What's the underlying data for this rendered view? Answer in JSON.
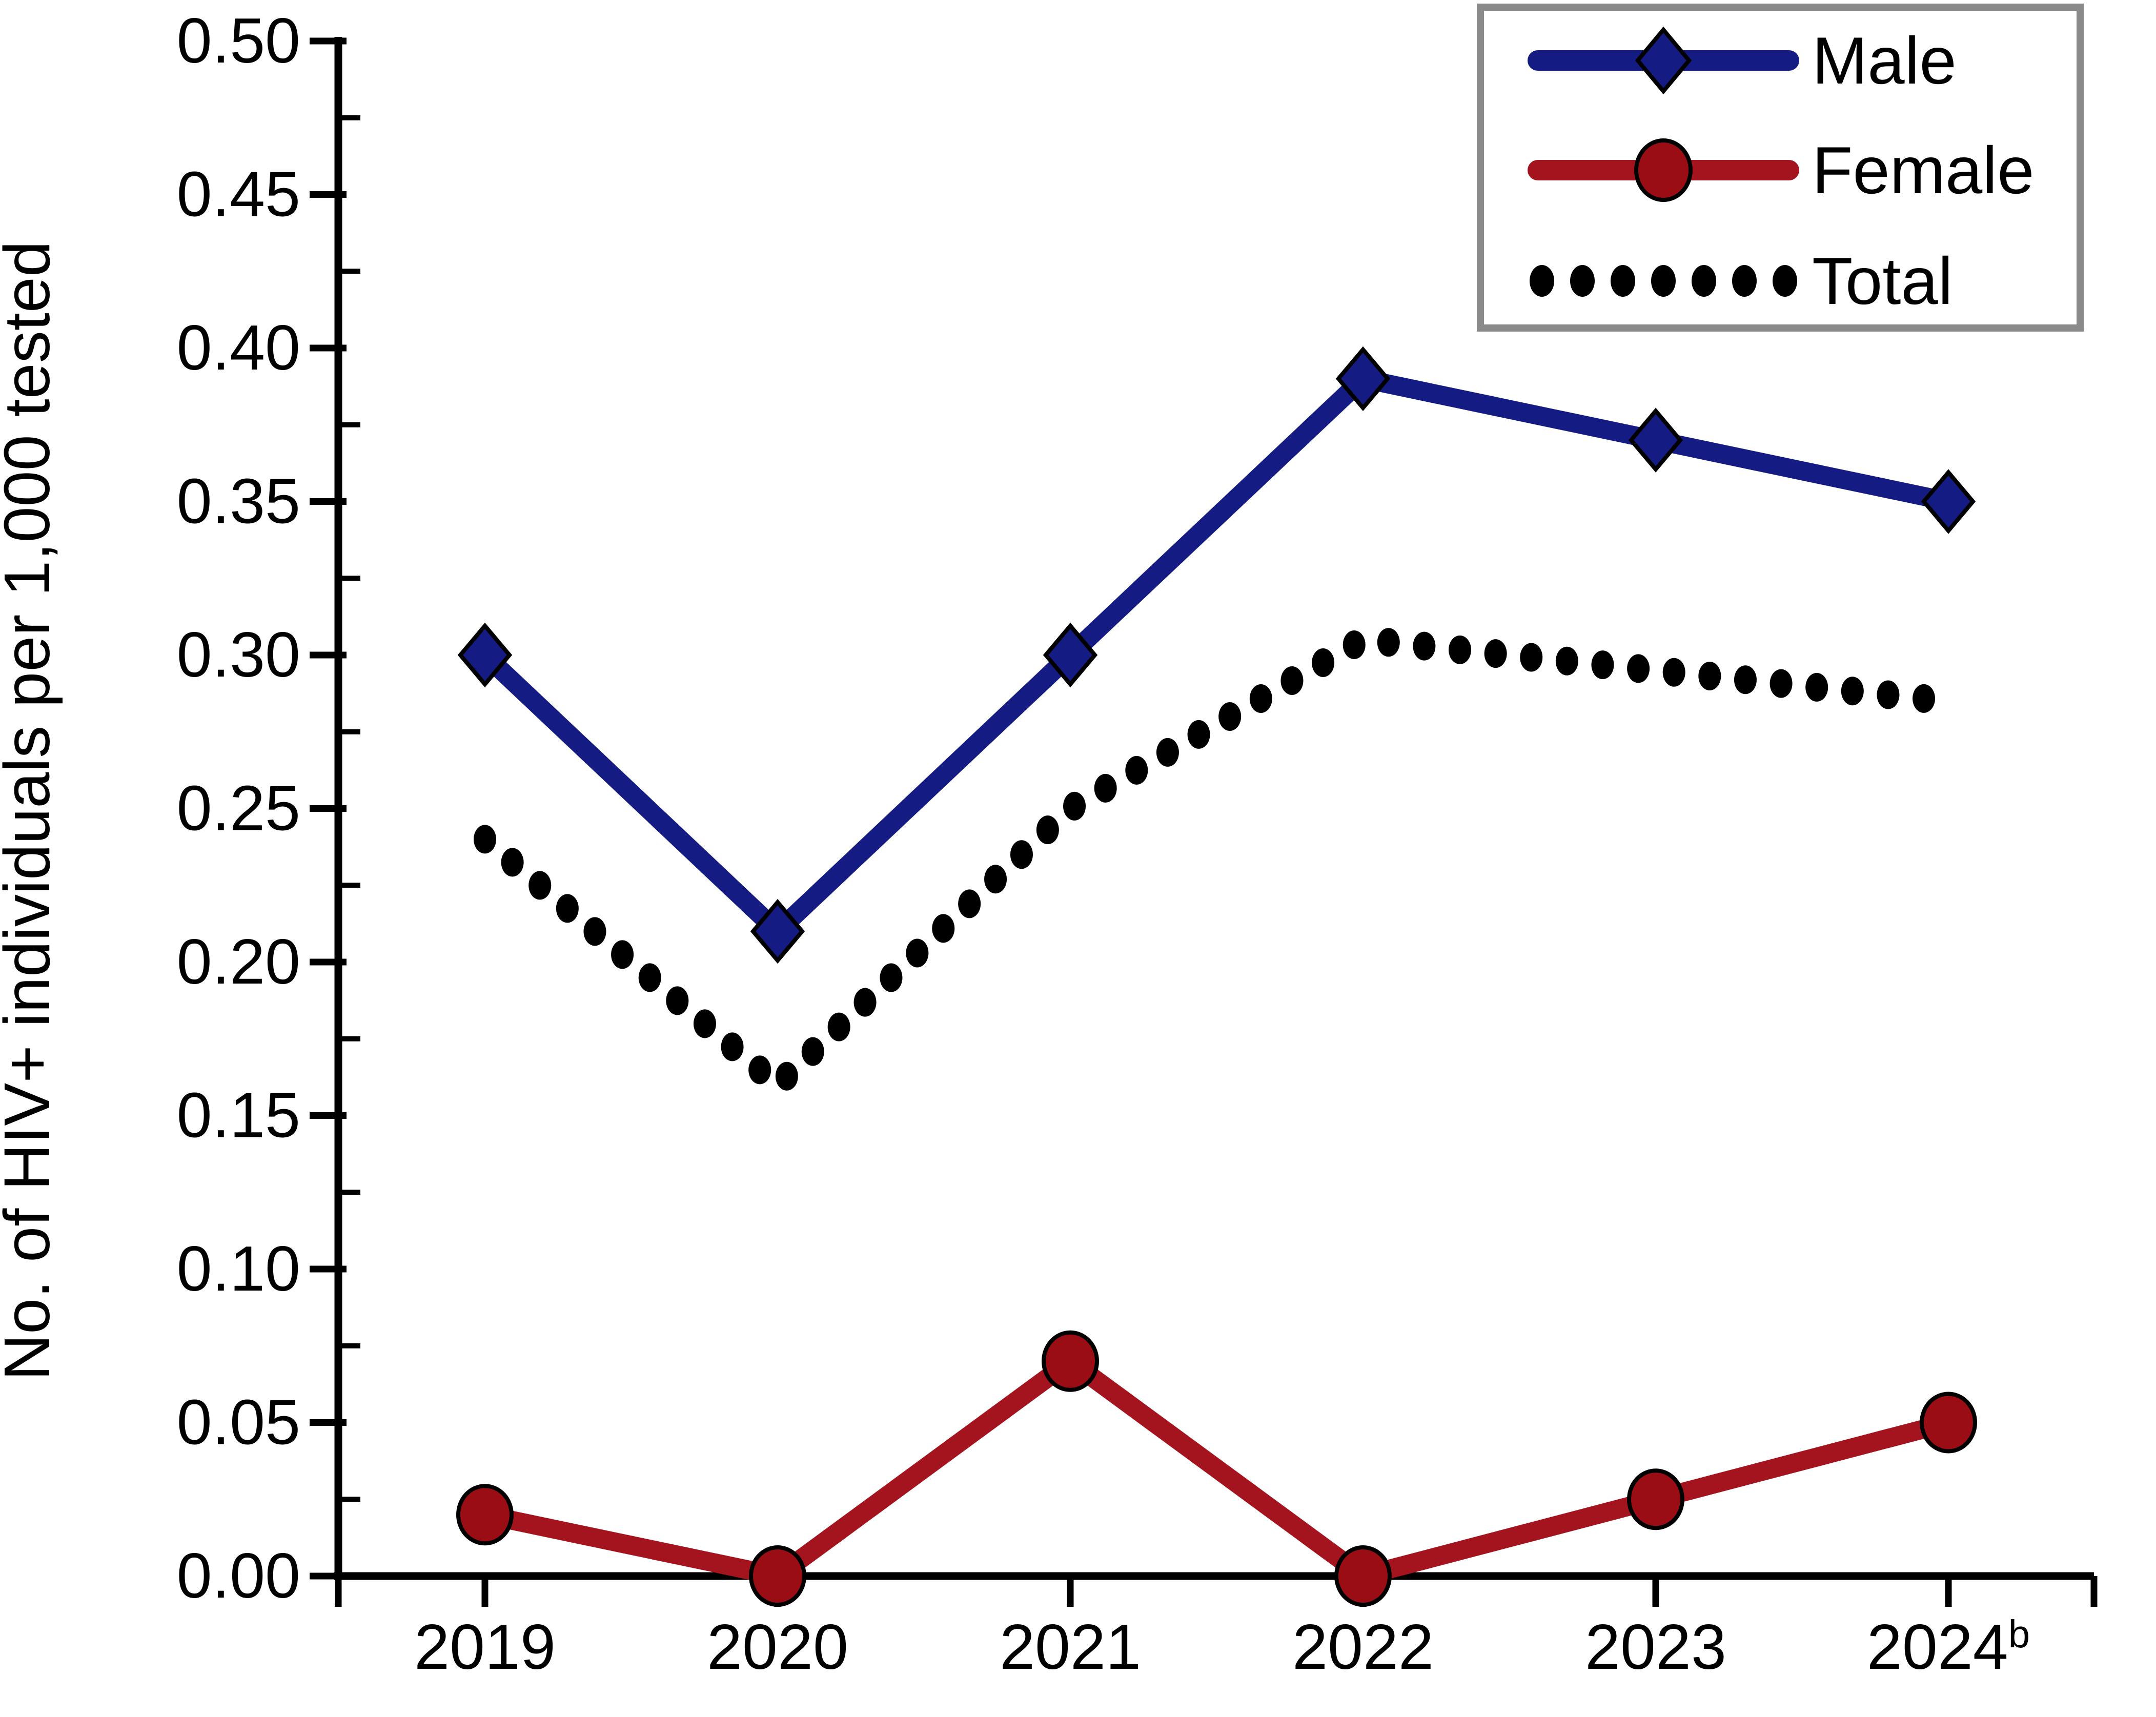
{
  "chart_data": {
    "type": "line",
    "title": "",
    "xlabel": "",
    "ylabel": "No. of HIV+ individuals per 1,000 tested",
    "x_categories": [
      "2019",
      "2020",
      "2021",
      "2022",
      "2023",
      "2024"
    ],
    "x_last_superscript": "b",
    "ylim": [
      0.0,
      0.5
    ],
    "y_major_step": 0.05,
    "y_minor_step": 0.025,
    "y_tick_decimals": 2,
    "grid": false,
    "legend_position": "top-right",
    "series": [
      {
        "name": "Male",
        "type": "line",
        "marker": "diamond",
        "color": "#141b83",
        "marker_fill": "#141b83",
        "values": [
          0.3,
          0.21,
          0.3,
          0.39,
          0.37,
          0.35
        ]
      },
      {
        "name": "Female",
        "type": "line",
        "marker": "circle",
        "color": "#a4141f",
        "marker_fill": "#9b0d15",
        "values": [
          0.02,
          0.0,
          0.07,
          0.0,
          0.025,
          0.05
        ]
      },
      {
        "name": "Total",
        "type": "dotted",
        "marker": "none",
        "color": "#000000",
        "marker_fill": "#000000",
        "values": [
          0.24,
          0.16,
          0.25,
          0.305,
          0.295,
          0.285
        ]
      }
    ],
    "colors": {
      "axis": "#000000",
      "text": "#000000",
      "legend_border": "#8a8a8a",
      "background": "#ffffff"
    }
  }
}
